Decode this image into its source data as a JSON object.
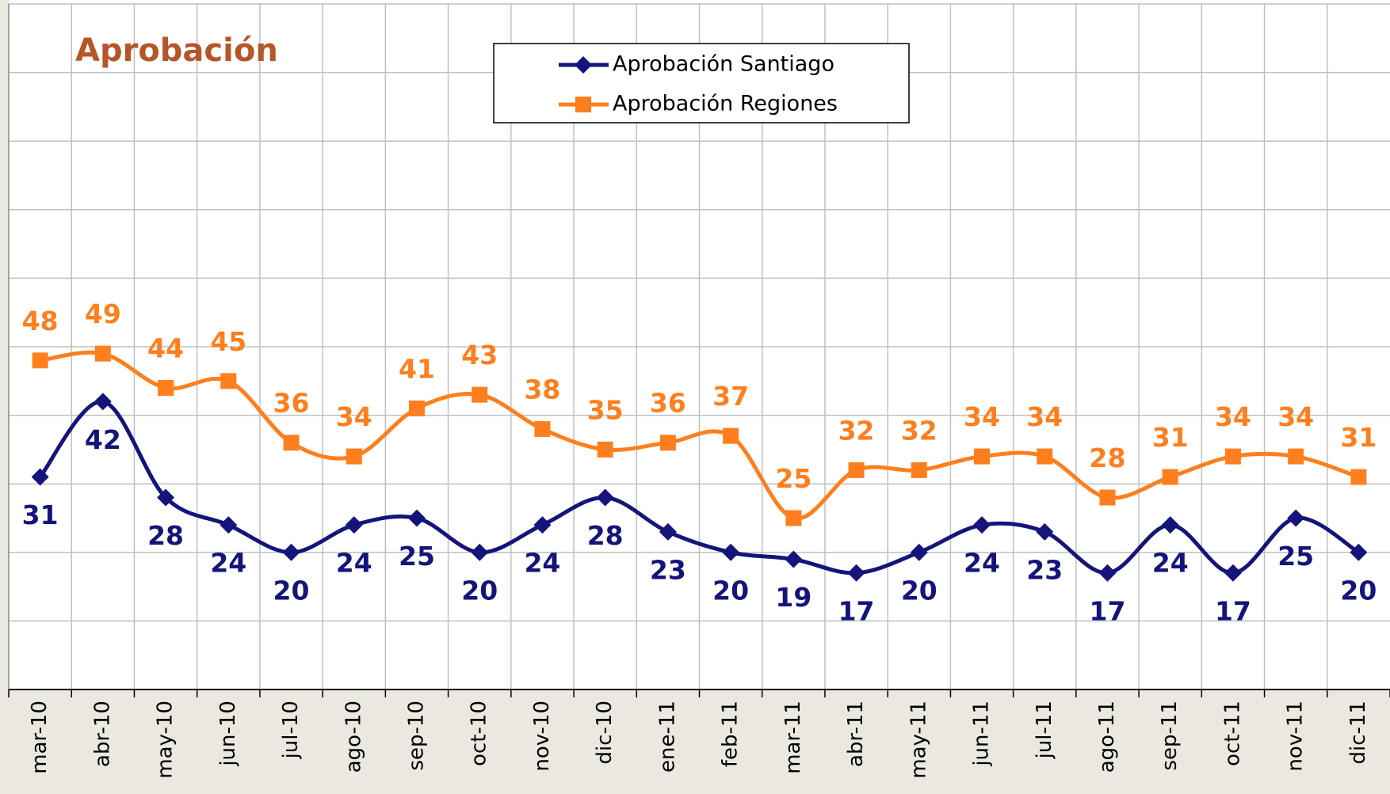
{
  "chart_data": {
    "type": "line",
    "title": "Aprobación",
    "categories": [
      "mar-10",
      "abr-10",
      "may-10",
      "jun-10",
      "jul-10",
      "ago-10",
      "sep-10",
      "oct-10",
      "nov-10",
      "dic-10",
      "ene-11",
      "feb-11",
      "mar-11",
      "abr-11",
      "may-11",
      "jun-11",
      "jul-11",
      "ago-11",
      "sep-11",
      "oct-11",
      "nov-11",
      "dic-11"
    ],
    "series": [
      {
        "name": "Aprobación Santiago",
        "color": "#14147a",
        "marker": "diamond",
        "label_position": "below",
        "values": [
          31,
          42,
          28,
          24,
          20,
          24,
          25,
          20,
          24,
          28,
          23,
          20,
          19,
          17,
          20,
          24,
          23,
          17,
          24,
          17,
          25,
          20
        ]
      },
      {
        "name": "Aprobación Regiones",
        "color": "#ff7f1e",
        "marker": "square",
        "label_position": "above",
        "values": [
          48,
          49,
          44,
          45,
          36,
          34,
          41,
          43,
          38,
          35,
          36,
          37,
          25,
          32,
          32,
          34,
          34,
          28,
          31,
          34,
          34,
          31
        ]
      }
    ],
    "ylim": [
      0,
      100
    ],
    "yticks": [
      0,
      10,
      20,
      30,
      40,
      50,
      60,
      70,
      80,
      90,
      100
    ],
    "grid": true,
    "smooth": true
  }
}
